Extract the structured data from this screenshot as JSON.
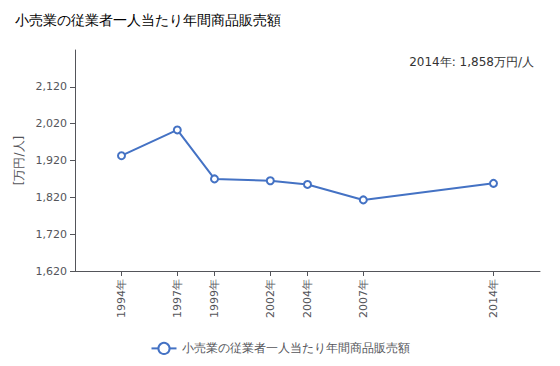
{
  "chart_data": {
    "type": "line",
    "title": "小売業の従業者一人当たり年間商品販売額",
    "ylabel": "[万円/人]",
    "annotation": "2014年: 1,858万円/人",
    "x": [
      1994,
      1997,
      1999,
      2002,
      2004,
      2007,
      2014
    ],
    "series": [
      {
        "name": "小売業の従業者一人当たり年間商品販売額",
        "color": "#4472C4",
        "values": [
          1933,
          2003,
          1870,
          1865,
          1855,
          1813,
          1858
        ]
      }
    ],
    "xlim": [
      1991.5,
      2016.5
    ],
    "xticks": [
      {
        "value": 1994,
        "label": "1994年"
      },
      {
        "value": 1997,
        "label": "1997年"
      },
      {
        "value": 1999,
        "label": "1999年"
      },
      {
        "value": 2002,
        "label": "2002年"
      },
      {
        "value": 2004,
        "label": "2004年"
      },
      {
        "value": 2007,
        "label": "2007年"
      },
      {
        "value": 2014,
        "label": "2014年"
      }
    ],
    "ylim": [
      1620,
      2220
    ],
    "yticks": [
      {
        "value": 1620,
        "label": "1,620"
      },
      {
        "value": 1720,
        "label": "1,720"
      },
      {
        "value": 1820,
        "label": "1,820"
      },
      {
        "value": 1920,
        "label": "1,920"
      },
      {
        "value": 2020,
        "label": "2,020"
      },
      {
        "value": 2120,
        "label": "2,120"
      }
    ],
    "grid": false,
    "legend": "bottom",
    "marker": "circle"
  }
}
